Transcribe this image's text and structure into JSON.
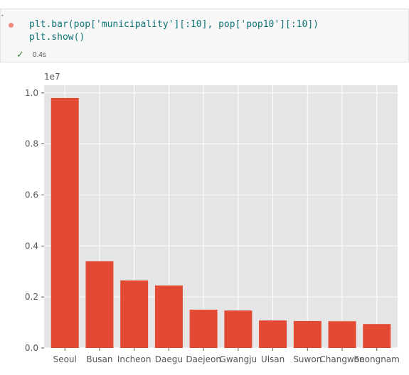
{
  "cell": {
    "code_lines": [
      "plt.bar(pop['municipality'][:10], pop['pop10'][:10])",
      "plt.show()"
    ],
    "status": {
      "time": "0.4s"
    }
  },
  "colors": {
    "bar": "#e24a33",
    "plot_bg": "#e5e5e5",
    "grid": "#ffffff",
    "run_dot": "#f28b82",
    "check": "#2e7d32"
  },
  "icons": {
    "status": "checkmark-icon",
    "run_indicator": "run-status-dot-icon"
  },
  "chart_data": {
    "type": "bar",
    "categories": [
      "Seoul",
      "Busan",
      "Incheon",
      "Daegu",
      "Daejeon",
      "Gwangju",
      "Ulsan",
      "Suwon",
      "Changwon",
      "Seongnam"
    ],
    "values": [
      9800000,
      3400000,
      2650000,
      2450000,
      1500000,
      1470000,
      1080000,
      1060000,
      1050000,
      940000
    ],
    "ylim": [
      0,
      10300000
    ],
    "yticks": [
      "0.0",
      "0.2",
      "0.4",
      "0.6",
      "0.8",
      "1.0"
    ],
    "ytick_values": [
      0,
      2000000,
      4000000,
      6000000,
      8000000,
      10000000
    ],
    "offset_label": "1e7",
    "title": "",
    "xlabel": "",
    "ylabel": "",
    "grid": true,
    "style": "ggplot"
  }
}
